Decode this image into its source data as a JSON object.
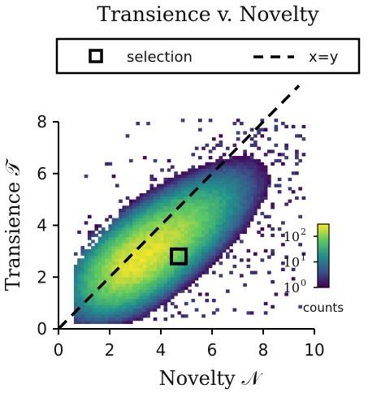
{
  "chart_data": {
    "type": "heatmap",
    "title": "Transience v. Novelty",
    "xlabel": "Novelty 𝒩",
    "ylabel": "Transience 𝒯",
    "xlim": [
      0,
      10
    ],
    "ylim": [
      0,
      8
    ],
    "xticks": [
      "0",
      "2",
      "4",
      "6",
      "8",
      "10"
    ],
    "yticks": [
      "0",
      "2",
      "4",
      "6",
      "8"
    ],
    "xtick_values": [
      0,
      2,
      4,
      6,
      8,
      10
    ],
    "ytick_values": [
      0,
      2,
      4,
      6,
      8
    ],
    "grid": false,
    "legend": {
      "placement": "top",
      "entries": [
        {
          "label": "selection",
          "marker": "open-square"
        },
        {
          "label": "x=y",
          "marker": "dashed-line"
        }
      ]
    },
    "reference_line": {
      "label": "x=y",
      "style": "dashed",
      "color": "#000000",
      "from": [
        0,
        0
      ],
      "to": [
        9.4,
        9.4
      ]
    },
    "selection_point": {
      "label": "selection",
      "x": 4.7,
      "y": 2.8
    },
    "colorbar": {
      "label": "counts",
      "scale": "log",
      "range": [
        1,
        300
      ],
      "tick_values": [
        1,
        10,
        100
      ],
      "tick_labels": [
        "10",
        "10",
        "10"
      ],
      "tick_exponents": [
        "0",
        "1",
        "2"
      ],
      "colormap": [
        "#440154",
        "#3b528b",
        "#21918c",
        "#5ec962",
        "#fde725"
      ]
    },
    "density_model": {
      "description": "2D histogram of counts, log colour scale",
      "peak_center": [
        3.0,
        2.6
      ],
      "peak_count": 250,
      "major_axis_slope": 0.72,
      "x_extent": [
        0.6,
        9.6
      ],
      "y_extent": [
        0.2,
        8.1
      ]
    }
  }
}
